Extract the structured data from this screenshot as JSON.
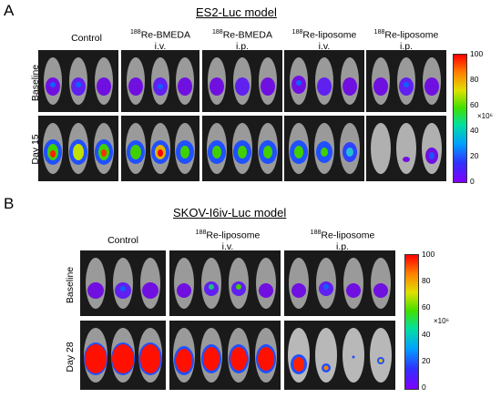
{
  "panels": [
    {
      "letter": "A",
      "model_title": "ES2-Luc model",
      "groups": [
        {
          "isotope": "188",
          "name": "",
          "plain": "Control",
          "route": ""
        },
        {
          "isotope": "188",
          "name": "Re-BMEDA",
          "route": "i.v."
        },
        {
          "isotope": "188",
          "name": "Re-BMEDA",
          "route": "i.p."
        },
        {
          "isotope": "188",
          "name": "Re-liposome",
          "route": "i.v."
        },
        {
          "isotope": "188",
          "name": "Re-liposome",
          "route": "i.p."
        }
      ],
      "rows": [
        "Baseline",
        "Day 15"
      ],
      "colorbar": {
        "ticks": [
          "100",
          "80",
          "60",
          "40",
          "20",
          "0"
        ],
        "unit": "×10⁶"
      }
    },
    {
      "letter": "B",
      "model_title": "SKOV-I6iv-Luc model",
      "groups": [
        {
          "isotope": "188",
          "name": "",
          "plain": "Control",
          "route": ""
        },
        {
          "isotope": "188",
          "name": "Re-liposome",
          "route": "i.v."
        },
        {
          "isotope": "188",
          "name": "Re-liposome",
          "route": "i.p."
        }
      ],
      "rows": [
        "Baseline",
        "Day 28"
      ],
      "colorbar": {
        "ticks": [
          "100",
          "80",
          "60",
          "40",
          "20",
          "0"
        ],
        "unit": "×10⁶"
      }
    }
  ],
  "colors": {
    "low": "#8000ff",
    "high": "#ff0000",
    "background": "#1a1a1a"
  }
}
